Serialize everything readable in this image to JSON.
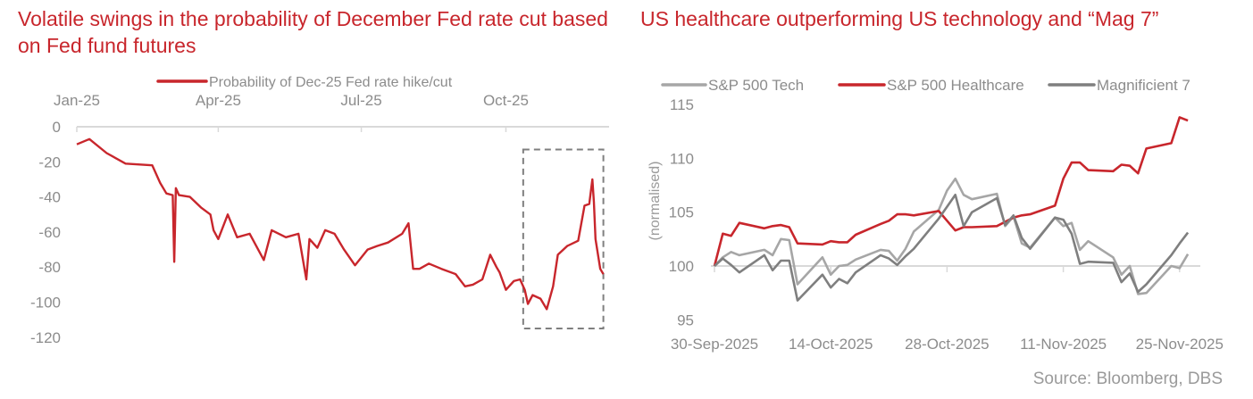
{
  "source": "Source: Bloomberg, DBS",
  "chart_data": [
    {
      "type": "line",
      "title": "Volatile swings in the probability of December Fed rate cut based on Fed fund futures",
      "xlabel": "",
      "ylabel": "",
      "x_tick_labels": [
        "Jan-25",
        "Apr-25",
        "Jul-25",
        "Oct-25"
      ],
      "x_tick_dates": [
        "2025-01-01",
        "2025-04-01",
        "2025-07-01",
        "2025-10-01"
      ],
      "y_ticks": [
        0,
        -20,
        -40,
        -60,
        -80,
        -100,
        -120
      ],
      "ylim": [
        -120,
        0
      ],
      "xlim": [
        "2025-01-01",
        "2025-12-03"
      ],
      "x_axis_position": "top",
      "grid": false,
      "legend_position": "top",
      "highlight_box": {
        "x": [
          "2025-10-12",
          "2025-12-02"
        ],
        "y": [
          -13,
          -115
        ],
        "style": "dashed",
        "color": "#7f7f7f"
      },
      "series": [
        {
          "name": "Probability of Dec-25 Fed rate hike/cut",
          "color": "#c8262c",
          "points": [
            [
              "2025-01-01",
              -10
            ],
            [
              "2025-01-09",
              -7
            ],
            [
              "2025-01-20",
              -15
            ],
            [
              "2025-02-01",
              -21
            ],
            [
              "2025-02-18",
              -22
            ],
            [
              "2025-02-23",
              -32
            ],
            [
              "2025-02-27",
              -38
            ],
            [
              "2025-03-03",
              -39
            ],
            [
              "2025-03-04",
              -77
            ],
            [
              "2025-03-05",
              -35
            ],
            [
              "2025-03-07",
              -39
            ],
            [
              "2025-03-14",
              -40
            ],
            [
              "2025-03-21",
              -46
            ],
            [
              "2025-03-27",
              -50
            ],
            [
              "2025-03-29",
              -59
            ],
            [
              "2025-04-01",
              -64
            ],
            [
              "2025-04-07",
              -50
            ],
            [
              "2025-04-13",
              -63
            ],
            [
              "2025-04-21",
              -61
            ],
            [
              "2025-04-30",
              -76
            ],
            [
              "2025-05-05",
              -59
            ],
            [
              "2025-05-14",
              -63
            ],
            [
              "2025-05-22",
              -61
            ],
            [
              "2025-05-27",
              -87
            ],
            [
              "2025-05-29",
              -64
            ],
            [
              "2025-06-03",
              -69
            ],
            [
              "2025-06-08",
              -59
            ],
            [
              "2025-06-14",
              -61
            ],
            [
              "2025-06-20",
              -70
            ],
            [
              "2025-06-27",
              -79
            ],
            [
              "2025-07-05",
              -70
            ],
            [
              "2025-07-11",
              -68
            ],
            [
              "2025-07-18",
              -66
            ],
            [
              "2025-07-27",
              -61
            ],
            [
              "2025-07-31",
              -55
            ],
            [
              "2025-08-03",
              -81
            ],
            [
              "2025-08-07",
              -81
            ],
            [
              "2025-08-13",
              -78
            ],
            [
              "2025-08-21",
              -81
            ],
            [
              "2025-08-30",
              -84
            ],
            [
              "2025-09-05",
              -91
            ],
            [
              "2025-09-10",
              -90
            ],
            [
              "2025-09-16",
              -87
            ],
            [
              "2025-09-21",
              -73
            ],
            [
              "2025-09-25",
              -80
            ],
            [
              "2025-09-27",
              -83
            ],
            [
              "2025-10-01",
              -93
            ],
            [
              "2025-10-06",
              -88
            ],
            [
              "2025-10-10",
              -87
            ],
            [
              "2025-10-13",
              -93
            ],
            [
              "2025-10-15",
              -101
            ],
            [
              "2025-10-18",
              -96
            ],
            [
              "2025-10-23",
              -98
            ],
            [
              "2025-10-27",
              -104
            ],
            [
              "2025-10-31",
              -91
            ],
            [
              "2025-11-03",
              -73
            ],
            [
              "2025-11-09",
              -68
            ],
            [
              "2025-11-16",
              -65
            ],
            [
              "2025-11-20",
              -45
            ],
            [
              "2025-11-23",
              -44
            ],
            [
              "2025-11-25",
              -30
            ],
            [
              "2025-11-26",
              -43
            ],
            [
              "2025-11-27",
              -64
            ],
            [
              "2025-11-30",
              -81
            ],
            [
              "2025-12-02",
              -84
            ]
          ]
        }
      ]
    },
    {
      "type": "line",
      "title": "US healthcare outperforming US technology and “Mag 7”",
      "xlabel": "",
      "ylabel": "(normalised)",
      "x_tick_labels": [
        "30-Sep-2025",
        "14-Oct-2025",
        "28-Oct-2025",
        "11-Nov-2025",
        "25-Nov-2025"
      ],
      "x_tick_dates": [
        "2025-09-30",
        "2025-10-14",
        "2025-10-28",
        "2025-11-11",
        "2025-11-25"
      ],
      "y_ticks": [
        95,
        100,
        105,
        110,
        115
      ],
      "ylim": [
        95,
        115
      ],
      "baseline": 100,
      "grid": false,
      "legend_position": "top",
      "x": [
        "2025-09-30",
        "2025-10-01",
        "2025-10-02",
        "2025-10-03",
        "2025-10-06",
        "2025-10-07",
        "2025-10-08",
        "2025-10-09",
        "2025-10-10",
        "2025-10-13",
        "2025-10-14",
        "2025-10-15",
        "2025-10-16",
        "2025-10-17",
        "2025-10-20",
        "2025-10-21",
        "2025-10-22",
        "2025-10-23",
        "2025-10-24",
        "2025-10-27",
        "2025-10-28",
        "2025-10-29",
        "2025-10-30",
        "2025-10-31",
        "2025-11-03",
        "2025-11-04",
        "2025-11-05",
        "2025-11-06",
        "2025-11-07",
        "2025-11-10",
        "2025-11-11",
        "2025-11-12",
        "2025-11-13",
        "2025-11-14",
        "2025-11-17",
        "2025-11-18",
        "2025-11-19",
        "2025-11-20",
        "2025-11-21",
        "2025-11-24",
        "2025-11-25",
        "2025-11-26"
      ],
      "series": [
        {
          "name": "S&P 500 Tech",
          "color": "#a6a6a6",
          "values": [
            100,
            100.8,
            101.3,
            101,
            101.5,
            101,
            102.5,
            102.4,
            98.3,
            100.8,
            99.2,
            100,
            100.1,
            100.6,
            101.5,
            101.4,
            100.5,
            101.6,
            103.2,
            105.2,
            107,
            108.1,
            106.6,
            106.2,
            106.7,
            103.7,
            104.6,
            102.1,
            101.7,
            104.5,
            103.7,
            104,
            101.5,
            102.3,
            100.8,
            99.2,
            100,
            97.4,
            97.5,
            100,
            99.8,
            101.1
          ]
        },
        {
          "name": "S&P 500 Healthcare",
          "color": "#c8262c",
          "values": [
            100,
            103,
            102.8,
            104,
            103.5,
            103.7,
            103.8,
            103.6,
            102.1,
            102,
            102.3,
            102.2,
            102.2,
            102.9,
            103.9,
            104.2,
            104.8,
            104.8,
            104.7,
            105.1,
            104.2,
            103.3,
            103.6,
            103.6,
            103.7,
            104.1,
            104.5,
            104.7,
            104.8,
            105.6,
            108.1,
            109.6,
            109.6,
            108.9,
            108.8,
            109.4,
            109.3,
            108.6,
            110.9,
            111.4,
            113.8,
            113.5
          ]
        },
        {
          "name": "Magnificient 7",
          "color": "#7f7f7f",
          "values": [
            100,
            100.7,
            100.1,
            99.4,
            101,
            99.6,
            100.5,
            100.5,
            96.8,
            99.2,
            98,
            98.8,
            98.4,
            99.4,
            101,
            100.7,
            100.1,
            100.9,
            101.6,
            104.4,
            105.5,
            106.6,
            103.7,
            105,
            106.3,
            103.8,
            104.7,
            102.6,
            101.6,
            104.5,
            104.3,
            103,
            100.2,
            100.4,
            100.3,
            98.5,
            99.3,
            97.6,
            98.3,
            101,
            102.1,
            103.1
          ]
        }
      ]
    }
  ]
}
